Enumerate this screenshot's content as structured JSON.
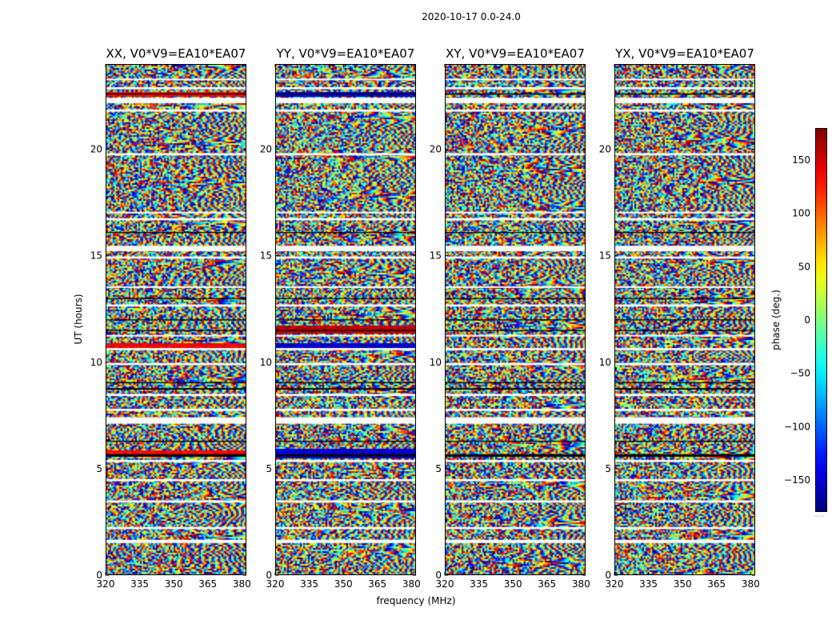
{
  "figure": {
    "suptitle": "2020-10-17 0.0-24.0",
    "ylabel": "UT (hours)",
    "xlabel": "frequency (MHz)",
    "colorbar_label": "phase (deg.)",
    "colormap": "jet"
  },
  "chart_data": [
    {
      "type": "heatmap",
      "title": "XX, V0*V9=EA10*EA07",
      "x_range": [
        320,
        382
      ],
      "x_ticks": [
        320,
        335,
        350,
        365,
        380
      ],
      "y_range": [
        0,
        24
      ],
      "y_ticks": [
        0,
        5,
        10,
        15,
        20
      ],
      "z_range": [
        -180,
        180
      ],
      "z_ticks": [
        -150,
        -100,
        -50,
        0,
        50,
        100,
        150
      ],
      "bands": [
        {
          "y": [
            5.6,
            5.9
          ],
          "phase": 135
        },
        {
          "y": [
            10.75,
            10.95
          ],
          "phase": 140
        },
        {
          "y": [
            22.5,
            22.75
          ],
          "phase": 135
        }
      ]
    },
    {
      "type": "heatmap",
      "title": "YY, V0*V9=EA10*EA07",
      "x_range": [
        320,
        382
      ],
      "x_ticks": [
        320,
        335,
        350,
        365,
        380
      ],
      "y_range": [
        0,
        24
      ],
      "y_ticks": [
        0,
        5,
        10,
        15,
        20
      ],
      "z_range": [
        -180,
        180
      ],
      "z_ticks": [
        -150,
        -100,
        -50,
        0,
        50,
        100,
        150
      ],
      "bands": [
        {
          "y": [
            5.55,
            6.0
          ],
          "phase": -150
        },
        {
          "y": [
            10.75,
            10.95
          ],
          "phase": -155
        },
        {
          "y": [
            22.5,
            22.75
          ],
          "phase": -150
        },
        {
          "y": [
            11.4,
            11.8
          ],
          "phase": 160
        }
      ]
    },
    {
      "type": "heatmap",
      "title": "XY, V0*V9=EA10*EA07",
      "x_range": [
        320,
        382
      ],
      "x_ticks": [
        320,
        335,
        350,
        365,
        380
      ],
      "y_range": [
        0,
        24
      ],
      "y_ticks": [
        0,
        5,
        10,
        15,
        20
      ],
      "z_range": [
        -180,
        180
      ],
      "z_ticks": [
        -150,
        -100,
        -50,
        0,
        50,
        100,
        150
      ],
      "bands": []
    },
    {
      "type": "heatmap",
      "title": "YX, V0*V9=EA10*EA07",
      "x_range": [
        320,
        382
      ],
      "x_ticks": [
        320,
        335,
        350,
        365,
        380
      ],
      "y_range": [
        0,
        24
      ],
      "y_ticks": [
        0,
        5,
        10,
        15,
        20
      ],
      "z_range": [
        -180,
        180
      ],
      "z_ticks": [
        -150,
        -100,
        -50,
        0,
        50,
        100,
        150
      ],
      "bands": []
    }
  ],
  "gaps_hours": [
    [
      1.55,
      1.7
    ],
    [
      2.2,
      2.3
    ],
    [
      3.45,
      3.55
    ],
    [
      4.45,
      4.55
    ],
    [
      5.35,
      5.45
    ],
    [
      7.15,
      7.45
    ],
    [
      7.75,
      7.85
    ],
    [
      8.45,
      8.55
    ],
    [
      9.9,
      10.0
    ],
    [
      10.6,
      10.7
    ],
    [
      11.25,
      11.32
    ],
    [
      12.65,
      12.75
    ],
    [
      13.55,
      13.6
    ],
    [
      14.9,
      15.0
    ],
    [
      15.25,
      15.5
    ],
    [
      16.7,
      16.8
    ],
    [
      17.05,
      17.1
    ],
    [
      19.75,
      19.85
    ],
    [
      21.8,
      21.9
    ],
    [
      22.2,
      22.45
    ],
    [
      22.85,
      22.95
    ],
    [
      23.3,
      23.35
    ]
  ],
  "dark_rows_hours": [
    [
      5.6,
      5.72
    ],
    [
      8.75,
      8.82
    ],
    [
      9.05,
      9.1
    ],
    [
      11.5,
      11.55
    ],
    [
      12.0,
      12.05
    ],
    [
      13.0,
      13.05
    ],
    [
      16.1,
      16.15
    ],
    [
      22.6,
      22.66
    ],
    [
      6.3,
      6.35
    ]
  ]
}
